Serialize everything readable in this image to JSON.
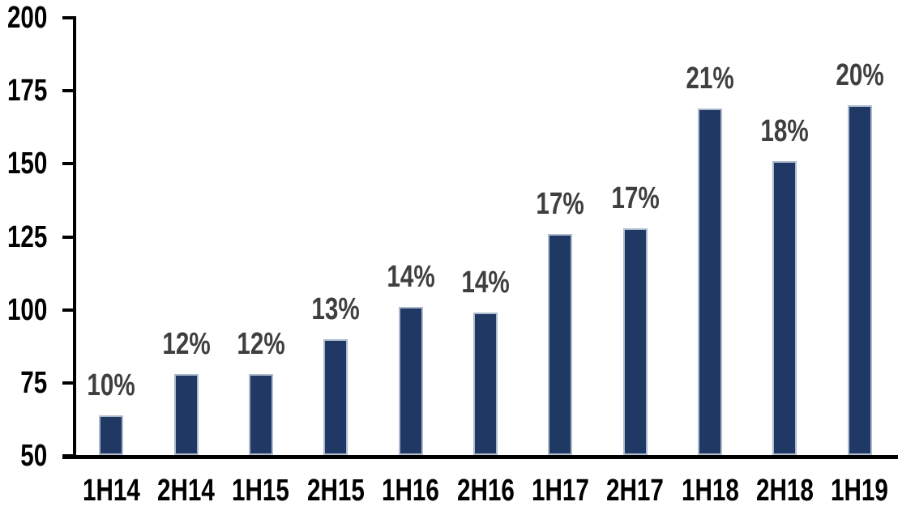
{
  "chart_data": {
    "type": "bar",
    "title": "",
    "xlabel": "",
    "ylabel": "",
    "categories": [
      "1H14",
      "2H14",
      "1H15",
      "2H15",
      "1H16",
      "2H16",
      "1H17",
      "2H17",
      "1H18",
      "2H18",
      "1H19"
    ],
    "values": [
      64,
      78,
      78,
      90,
      101,
      99,
      126,
      128,
      169,
      151,
      170
    ],
    "bar_labels": [
      "10%",
      "12%",
      "12%",
      "13%",
      "14%",
      "14%",
      "17%",
      "17%",
      "21%",
      "18%",
      "20%"
    ],
    "ylim": [
      50,
      200
    ],
    "yticks": [
      50,
      75,
      100,
      125,
      150,
      175,
      200
    ],
    "grid": false,
    "legend": false,
    "colors": {
      "bar_fill": "#1F3864",
      "bar_border": "#AEBACD",
      "axis": "#000000",
      "axis_tick_label": "#000000",
      "data_label": "#3F3F3F",
      "background": "#FFFFFF"
    }
  }
}
